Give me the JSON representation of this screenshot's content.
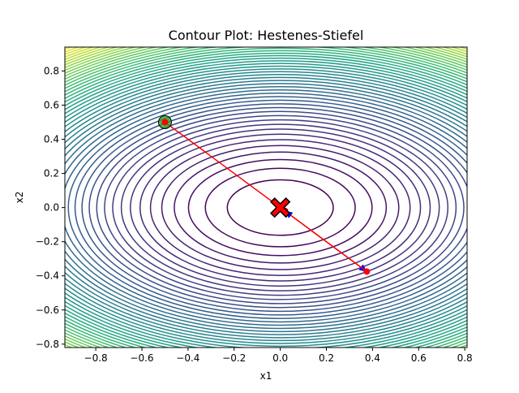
{
  "chart_data": {
    "type": "contour",
    "title": "Contour Plot: Hestenes-Stiefel",
    "xlabel": "x1",
    "ylabel": "x2",
    "xlim": [
      -0.934,
      0.81
    ],
    "ylim": [
      -0.82,
      0.94
    ],
    "xticks": [
      -0.8,
      -0.6,
      -0.4,
      -0.2,
      0.0,
      0.2,
      0.4,
      0.6,
      0.8
    ],
    "yticks": [
      -0.8,
      -0.6,
      -0.4,
      -0.2,
      0.0,
      0.2,
      0.4,
      0.6,
      0.8
    ],
    "xtick_labels": [
      "−0.8",
      "−0.6",
      "−0.4",
      "−0.2",
      "0.0",
      "0.2",
      "0.4",
      "0.6",
      "0.8"
    ],
    "ytick_labels": [
      "−0.8",
      "−0.6",
      "−0.4",
      "−0.2",
      "0.0",
      "0.2",
      "0.4",
      "0.6",
      "0.8"
    ],
    "colormap": "viridis",
    "contour_function": "x1^2 + 2*x2^2",
    "contour_level_count": 50,
    "path": [
      {
        "x": -0.5,
        "y": 0.5
      },
      {
        "x": 0.375,
        "y": -0.375
      },
      {
        "x": 0.02,
        "y": -0.02
      },
      {
        "x": 0.0,
        "y": 0.0
      }
    ],
    "start_point": {
      "x": -0.5,
      "y": 0.5
    },
    "optimum_point": {
      "x": 0.0,
      "y": 0.0
    },
    "colors": {
      "path": "#ff0000",
      "arrow": "#0000ff",
      "start_ring": "#2ca02c",
      "optimum_marker": "#ff0000"
    }
  }
}
